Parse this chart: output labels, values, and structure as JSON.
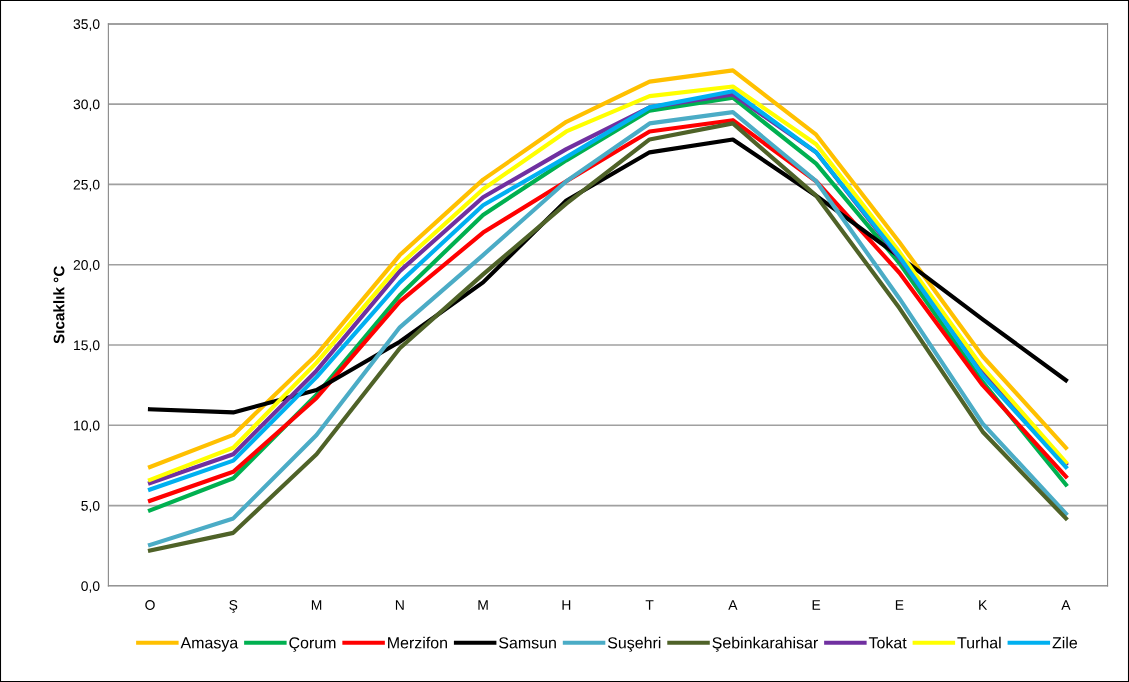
{
  "chart_data": {
    "type": "line",
    "ylabel": "Sıcaklık °C",
    "categories": [
      "O",
      "Ş",
      "M",
      "N",
      "M",
      "H",
      "T",
      "A",
      "E",
      "E",
      "K",
      "A"
    ],
    "series": [
      {
        "name": "Amasya",
        "color": "#ffc000",
        "values": [
          7.4,
          9.4,
          14.4,
          20.6,
          25.3,
          28.9,
          31.4,
          32.1,
          28.1,
          21.4,
          14.3,
          8.6
        ]
      },
      {
        "name": "Çorum",
        "color": "#00b050",
        "values": [
          4.7,
          6.7,
          11.9,
          18.1,
          23.1,
          26.5,
          29.6,
          30.4,
          26.3,
          20.1,
          12.7,
          6.3
        ]
      },
      {
        "name": "Merzifon",
        "color": "#ff0000",
        "values": [
          5.3,
          7.1,
          11.7,
          17.7,
          22.0,
          25.2,
          28.3,
          29.0,
          25.2,
          19.5,
          12.5,
          6.8
        ]
      },
      {
        "name": "Samsun",
        "color": "#000000",
        "values": [
          11.0,
          10.8,
          12.2,
          15.2,
          18.9,
          24.0,
          27.0,
          27.8,
          24.3,
          20.5,
          16.6,
          12.8
        ]
      },
      {
        "name": "Suşehri",
        "color": "#4bacc6",
        "values": [
          2.55,
          4.2,
          9.4,
          16.1,
          20.6,
          25.2,
          28.8,
          29.5,
          25.2,
          17.9,
          10.1,
          4.5
        ]
      },
      {
        "name": "Şebinkarahisar",
        "color": "#4f6228",
        "values": [
          2.2,
          3.3,
          8.2,
          14.8,
          19.4,
          23.8,
          27.8,
          28.8,
          24.3,
          17.3,
          9.6,
          4.2
        ]
      },
      {
        "name": "Tokat",
        "color": "#7030a0",
        "values": [
          6.4,
          8.2,
          13.4,
          19.6,
          24.2,
          27.2,
          29.8,
          30.6,
          27.0,
          20.4,
          13.3,
          7.6
        ]
      },
      {
        "name": "Turhal",
        "color": "#ffff00",
        "values": [
          6.6,
          8.6,
          13.9,
          20.0,
          24.7,
          28.3,
          30.5,
          31.1,
          27.5,
          20.8,
          13.6,
          7.7
        ]
      },
      {
        "name": "Zile",
        "color": "#00b0f0",
        "values": [
          6.0,
          7.8,
          13.0,
          18.9,
          23.7,
          26.7,
          29.8,
          30.8,
          27.0,
          20.5,
          13.1,
          7.4
        ]
      }
    ],
    "ylim": [
      0,
      35
    ],
    "yticks": [
      {
        "value": 0,
        "label": "0,0"
      },
      {
        "value": 5,
        "label": "5,0"
      },
      {
        "value": 10,
        "label": "10,0"
      },
      {
        "value": 15,
        "label": "15,0"
      },
      {
        "value": 20,
        "label": "20,0"
      },
      {
        "value": 25,
        "label": "25,0"
      },
      {
        "value": 30,
        "label": "30,0"
      },
      {
        "value": 35,
        "label": "35,0"
      }
    ],
    "grid": "y",
    "legend": "bottom",
    "marker": "none",
    "line_style": "solid"
  }
}
